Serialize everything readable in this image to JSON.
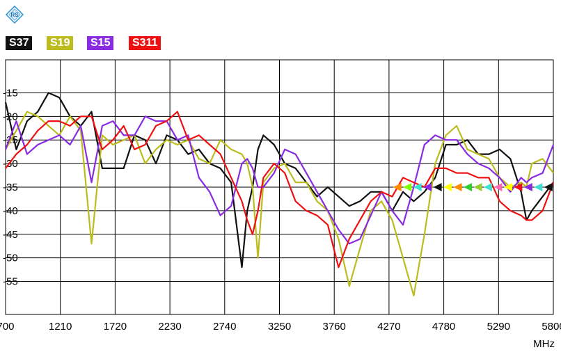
{
  "colors": {
    "S37": "#111111",
    "S19": "#bcbc1e",
    "S15": "#8a2be2",
    "S311": "#ee1111",
    "grid": "#000000",
    "logo": "#3a9bd9"
  },
  "legend": [
    {
      "label": "S37",
      "color": "#111111"
    },
    {
      "label": "S19",
      "color": "#bcbc1e"
    },
    {
      "label": "S15",
      "color": "#8a2be2"
    },
    {
      "label": "S311",
      "color": "#ee1111"
    }
  ],
  "chart_data": {
    "type": "line",
    "title": "",
    "xlabel": "MHz",
    "ylabel": "",
    "xlim": [
      700,
      5800
    ],
    "ylim": [
      -62,
      -8
    ],
    "grid": true,
    "x_ticks": [
      "700",
      "1210",
      "1720",
      "2230",
      "2740",
      "3250",
      "3760",
      "4270",
      "4780",
      "5290",
      "5800"
    ],
    "y_ticks": [
      "-15",
      "-20",
      "-25",
      "-30",
      "-35",
      "-40",
      "-45",
      "-50",
      "-55"
    ],
    "x": [
      700,
      800,
      900,
      1000,
      1100,
      1200,
      1300,
      1400,
      1500,
      1600,
      1700,
      1800,
      1900,
      2000,
      2100,
      2200,
      2300,
      2400,
      2500,
      2600,
      2700,
      2800,
      2900,
      2950,
      3000,
      3050,
      3100,
      3200,
      3300,
      3400,
      3500,
      3600,
      3700,
      3800,
      3900,
      4000,
      4100,
      4200,
      4300,
      4400,
      4500,
      4600,
      4700,
      4800,
      4900,
      5000,
      5100,
      5200,
      5300,
      5400,
      5500,
      5550,
      5600,
      5700,
      5800
    ],
    "series": [
      {
        "name": "S37",
        "values": [
          -17,
          -27,
          -21,
          -19,
          -15,
          -16,
          -20,
          -22,
          -19,
          -31,
          -31,
          -31,
          -24,
          -25,
          -30,
          -24,
          -25,
          -28,
          -27,
          -30,
          -31,
          -34,
          -52,
          -40,
          -35,
          -27,
          -24,
          -26,
          -30,
          -31,
          -34,
          -37,
          -35,
          -37,
          -39,
          -38,
          -36,
          -36,
          -40,
          -36,
          -38,
          -36,
          -33,
          -26,
          -26,
          -25,
          -28,
          -28,
          -27,
          -29,
          -36,
          -42,
          -40,
          -37,
          -34
        ]
      },
      {
        "name": "S19",
        "values": [
          -27,
          -23,
          -19,
          -20,
          -22,
          -24,
          -20,
          -23,
          -47,
          -24,
          -26,
          -25,
          -24,
          -30,
          -27,
          -25,
          -26,
          -25,
          -29,
          -30,
          -25,
          -27,
          -28,
          -30,
          -35,
          -50,
          -34,
          -31,
          -30,
          -34,
          -34,
          -38,
          -40,
          -46,
          -56,
          -48,
          -40,
          -38,
          -42,
          -50,
          -58,
          -45,
          -30,
          -24,
          -22,
          -27,
          -28,
          -29,
          -33,
          -35,
          -34,
          -35,
          -30,
          -29,
          -32
        ]
      },
      {
        "name": "S15",
        "values": [
          -27,
          -21,
          -28,
          -26,
          -25,
          -24,
          -26,
          -22,
          -34,
          -22,
          -21,
          -24,
          -24,
          -20,
          -21,
          -21,
          -25,
          -24,
          -33,
          -36,
          -41,
          -39,
          -30,
          -29,
          -31,
          -35,
          -35,
          -32,
          -27,
          -28,
          -32,
          -36,
          -40,
          -44,
          -47,
          -46,
          -41,
          -36,
          -40,
          -43,
          -35,
          -26,
          -24,
          -25,
          -25,
          -28,
          -30,
          -31,
          -33,
          -36,
          -33,
          -34,
          -33,
          -32,
          -26
        ]
      },
      {
        "name": "S311",
        "values": [
          -31,
          -28,
          -26,
          -23,
          -21,
          -21,
          -22,
          -20,
          -20,
          -27,
          -25,
          -22,
          -27,
          -26,
          -22,
          -21,
          -19,
          -25,
          -24,
          -26,
          -28,
          -33,
          -38,
          -42,
          -45,
          -40,
          -33,
          -30,
          -32,
          -38,
          -40,
          -41,
          -43,
          -52,
          -46,
          -42,
          -38,
          -36,
          -37,
          -33,
          -34,
          -35,
          -31,
          -31,
          -32,
          -32,
          -33,
          -33,
          -38,
          -40,
          -41,
          -42,
          -42,
          -40,
          -34
        ]
      }
    ],
    "marker_rows": [
      {
        "y": -35,
        "x_start": 4300,
        "x_end": 5800,
        "colors": [
          "#ff8c00",
          "#7fff00",
          "#40e0d0",
          "#8a2be2",
          "#111111",
          "#ffff00",
          "#ff8c00",
          "#32cd32",
          "#9acd32",
          "#40e0d0",
          "#ff69b4",
          "#ffff00",
          "#ee1111",
          "#8a2be2",
          "#40e0d0",
          "#111111"
        ]
      }
    ]
  }
}
